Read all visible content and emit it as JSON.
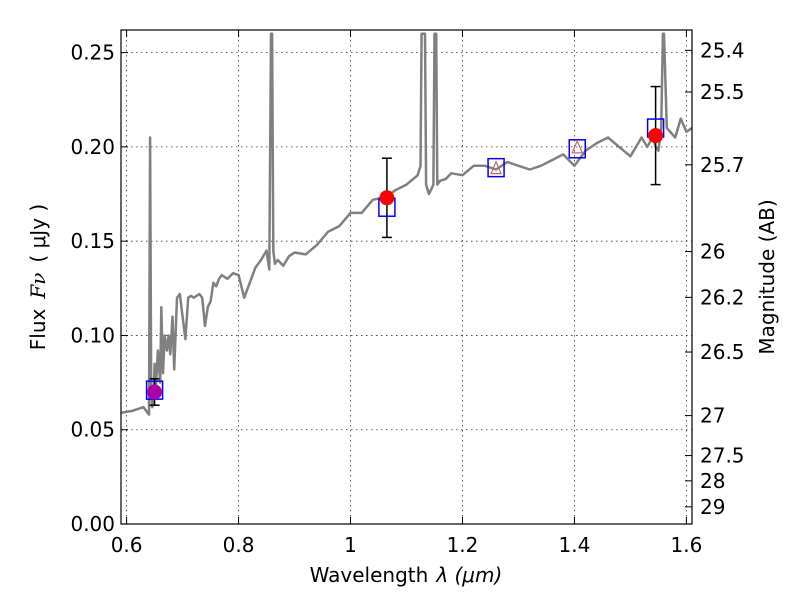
{
  "chart_data": {
    "type": "line",
    "xlabel": "Wavelength",
    "xlabel_symbol": "λ (μm)",
    "ylabel": "Flux",
    "ylabel_symbol": "Fν",
    "ylabel_unit": "( μJy )",
    "y2label": "Magnitude (AB)",
    "xlim": [
      0.59,
      1.61
    ],
    "ylim": [
      0.0,
      0.262
    ],
    "grid": true,
    "x_ticks": [
      "0.6",
      "0.8",
      "1",
      "1.2",
      "1.4",
      "1.6"
    ],
    "y_ticks": [
      "0.00",
      "0.05",
      "0.10",
      "0.15",
      "0.20",
      "0.25"
    ],
    "y2_ticks": [
      {
        "label": "25.4",
        "flux": 0.2512
      },
      {
        "label": "25.5",
        "flux": 0.2291
      },
      {
        "label": "25.7",
        "flux": 0.1905
      },
      {
        "label": "26",
        "flux": 0.1445
      },
      {
        "label": "26.2",
        "flux": 0.1202
      },
      {
        "label": "26.5",
        "flux": 0.0912
      },
      {
        "label": "27",
        "flux": 0.0575
      },
      {
        "label": "27.5",
        "flux": 0.0363
      },
      {
        "label": "28",
        "flux": 0.0229
      },
      {
        "label": "29",
        "flux": 0.0091
      }
    ],
    "series": [
      {
        "name": "",
        "kind": "line",
        "color": "#808080",
        "x": [
          0.59,
          0.61,
          0.63,
          0.64,
          0.642,
          0.644,
          0.646,
          0.648,
          0.65,
          0.652,
          0.656,
          0.66,
          0.662,
          0.665,
          0.668,
          0.672,
          0.675,
          0.678,
          0.682,
          0.685,
          0.69,
          0.695,
          0.7,
          0.705,
          0.71,
          0.715,
          0.72,
          0.73,
          0.735,
          0.74,
          0.745,
          0.75,
          0.755,
          0.76,
          0.765,
          0.77,
          0.78,
          0.79,
          0.8,
          0.81,
          0.82,
          0.83,
          0.835,
          0.84,
          0.85,
          0.855,
          0.858,
          0.86,
          0.862,
          0.865,
          0.87,
          0.88,
          0.89,
          0.9,
          0.92,
          0.94,
          0.96,
          0.98,
          1.0,
          1.02,
          1.04,
          1.06,
          1.08,
          1.1,
          1.12,
          1.125,
          1.127,
          1.13,
          1.133,
          1.135,
          1.14,
          1.145,
          1.148,
          1.15,
          1.153,
          1.155,
          1.16,
          1.17,
          1.18,
          1.2,
          1.22,
          1.24,
          1.26,
          1.28,
          1.3,
          1.32,
          1.34,
          1.36,
          1.38,
          1.4,
          1.42,
          1.44,
          1.46,
          1.48,
          1.5,
          1.52,
          1.53,
          1.54,
          1.545,
          1.55,
          1.555,
          1.558,
          1.56,
          1.565,
          1.58,
          1.59,
          1.6,
          1.61
        ],
        "y": [
          0.059,
          0.06,
          0.062,
          0.058,
          0.205,
          0.07,
          0.062,
          0.065,
          0.085,
          0.07,
          0.092,
          0.075,
          0.115,
          0.08,
          0.1,
          0.092,
          0.1,
          0.09,
          0.11,
          0.082,
          0.12,
          0.122,
          0.11,
          0.098,
          0.12,
          0.121,
          0.12,
          0.122,
          0.12,
          0.105,
          0.115,
          0.118,
          0.128,
          0.126,
          0.13,
          0.132,
          0.13,
          0.133,
          0.132,
          0.12,
          0.128,
          0.136,
          0.138,
          0.14,
          0.145,
          0.135,
          0.26,
          0.26,
          0.145,
          0.138,
          0.14,
          0.137,
          0.142,
          0.144,
          0.143,
          0.148,
          0.155,
          0.158,
          0.165,
          0.165,
          0.172,
          0.173,
          0.177,
          0.18,
          0.185,
          0.19,
          0.26,
          0.26,
          0.26,
          0.18,
          0.175,
          0.178,
          0.18,
          0.26,
          0.26,
          0.18,
          0.182,
          0.183,
          0.186,
          0.185,
          0.19,
          0.19,
          0.188,
          0.192,
          0.19,
          0.188,
          0.19,
          0.193,
          0.196,
          0.19,
          0.198,
          0.202,
          0.205,
          0.2,
          0.195,
          0.205,
          0.2,
          0.205,
          0.2,
          0.198,
          0.21,
          0.26,
          0.26,
          0.21,
          0.205,
          0.215,
          0.208,
          0.21
        ]
      },
      {
        "name": "",
        "kind": "markers",
        "color": "#ff0000",
        "x": [
          1.065,
          1.545
        ],
        "y": [
          0.173,
          0.206
        ],
        "yerr": [
          0.021,
          0.026
        ]
      },
      {
        "name": "",
        "kind": "markers",
        "color": "#aa00aa",
        "x": [
          0.65
        ],
        "y": [
          0.07
        ],
        "yerr": [
          0.007
        ]
      },
      {
        "name": "",
        "kind": "open-squares",
        "color": "#0000ff",
        "x": [
          0.65,
          1.065,
          1.26,
          1.405,
          1.545
        ],
        "y": [
          0.071,
          0.168,
          0.189,
          0.199,
          0.21
        ]
      },
      {
        "name": "",
        "kind": "open-triangles",
        "color": "#cc6666",
        "x": [
          1.26,
          1.405
        ],
        "y": [
          0.189,
          0.2
        ]
      }
    ]
  }
}
